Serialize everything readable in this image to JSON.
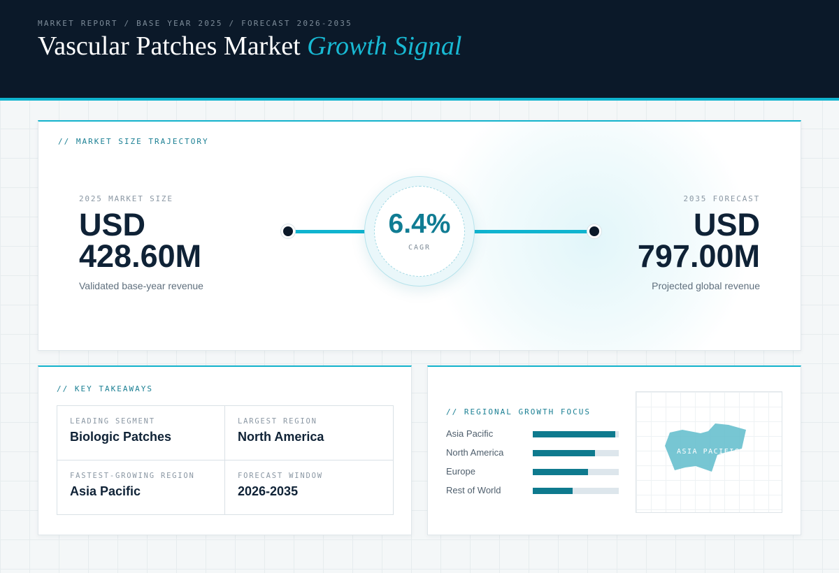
{
  "header": {
    "breadcrumb": "MARKET REPORT / BASE YEAR 2025 / FORECAST 2026-2035",
    "title_main": "Vascular Patches Market",
    "title_accent": "Growth Signal"
  },
  "trajectory": {
    "label": "// MARKET SIZE TRAJECTORY",
    "start": {
      "caption": "2025 MARKET SIZE",
      "value": "USD 428.60M",
      "subtitle": "Validated base-year revenue"
    },
    "end": {
      "caption": "2035 FORECAST",
      "value": "USD 797.00M",
      "subtitle": "Projected global revenue"
    },
    "cagr": {
      "value": "6.4%",
      "caption": "CAGR"
    }
  },
  "takeaways": {
    "label": "// KEY TAKEAWAYS",
    "items": [
      {
        "caption": "LEADING SEGMENT",
        "value": "Biologic Patches"
      },
      {
        "caption": "LARGEST REGION",
        "value": "North America"
      },
      {
        "caption": "FASTEST-GROWING REGION",
        "value": "Asia Pacific"
      },
      {
        "caption": "FORECAST WINDOW",
        "value": "2026-2035"
      }
    ]
  },
  "regional": {
    "label": "// REGIONAL GROWTH FOCUS",
    "regions": [
      {
        "name": "Asia Pacific",
        "level": 0.96
      },
      {
        "name": "North America",
        "level": 0.72
      },
      {
        "name": "Europe",
        "level": 0.64
      },
      {
        "name": "Rest of World",
        "level": 0.46
      }
    ],
    "map_label": "ASIA PACIFIC"
  },
  "colors": {
    "header_bg": "#0b1929",
    "accent": "#10b4cf",
    "accent_dark": "#0e7a8e",
    "text_dark": "#0f2236"
  }
}
